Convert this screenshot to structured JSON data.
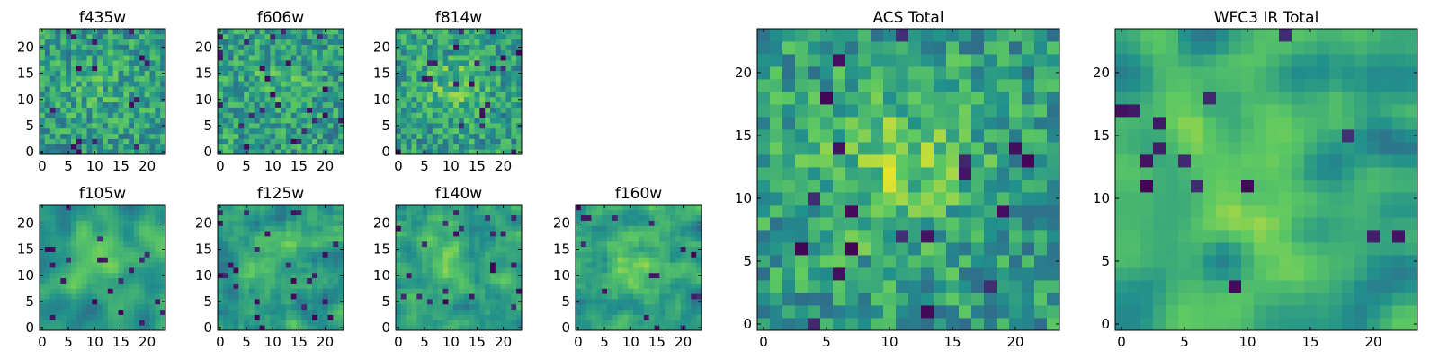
{
  "figure": {
    "colormap": "viridis",
    "colormap_stops": [
      "#440154",
      "#3b528b",
      "#21918c",
      "#5ec962",
      "#fde725"
    ]
  },
  "chart_data": [
    {
      "type": "heatmap",
      "title": "f435w",
      "grid_size": 24,
      "pattern": "noise",
      "smoothness": 0,
      "blob": 0.15,
      "xticks": [
        "0",
        "5",
        "10",
        "15",
        "20"
      ],
      "yticks": [
        "0",
        "5",
        "10",
        "15",
        "20"
      ],
      "xlim": [
        0,
        24
      ],
      "ylim": [
        0,
        24
      ],
      "colorbar": false
    },
    {
      "type": "heatmap",
      "title": "f606w",
      "grid_size": 24,
      "pattern": "noise",
      "smoothness": 0,
      "blob": 0.2,
      "xticks": [
        "0",
        "5",
        "10",
        "15",
        "20"
      ],
      "yticks": [
        "0",
        "5",
        "10",
        "15",
        "20"
      ],
      "xlim": [
        0,
        24
      ],
      "ylim": [
        0,
        24
      ],
      "colorbar": false
    },
    {
      "type": "heatmap",
      "title": "f814w",
      "grid_size": 24,
      "pattern": "noise",
      "smoothness": 0,
      "blob": 0.35,
      "xticks": [
        "0",
        "5",
        "10",
        "15",
        "20"
      ],
      "yticks": [
        "0",
        "5",
        "10",
        "15",
        "20"
      ],
      "xlim": [
        0,
        24
      ],
      "ylim": [
        0,
        24
      ],
      "colorbar": false
    },
    {
      "type": "heatmap",
      "title": "f105w",
      "grid_size": 24,
      "pattern": "smooth",
      "smoothness": 2,
      "blob": 0.5,
      "xticks": [
        "0",
        "5",
        "10",
        "15",
        "20"
      ],
      "yticks": [
        "0",
        "5",
        "10",
        "15",
        "20"
      ],
      "xlim": [
        0,
        24
      ],
      "ylim": [
        0,
        24
      ],
      "colorbar": false
    },
    {
      "type": "heatmap",
      "title": "f125w",
      "grid_size": 24,
      "pattern": "smooth",
      "smoothness": 1,
      "blob": 0.4,
      "xticks": [
        "0",
        "5",
        "10",
        "15",
        "20"
      ],
      "yticks": [
        "0",
        "5",
        "10",
        "15",
        "20"
      ],
      "xlim": [
        0,
        24
      ],
      "ylim": [
        0,
        24
      ],
      "colorbar": false
    },
    {
      "type": "heatmap",
      "title": "f140w",
      "grid_size": 24,
      "pattern": "smooth",
      "smoothness": 1,
      "blob": 0.4,
      "xticks": [
        "0",
        "5",
        "10",
        "15",
        "20"
      ],
      "yticks": [
        "0",
        "5",
        "10",
        "15",
        "20"
      ],
      "xlim": [
        0,
        24
      ],
      "ylim": [
        0,
        24
      ],
      "colorbar": false
    },
    {
      "type": "heatmap",
      "title": "f160w",
      "grid_size": 24,
      "pattern": "smooth",
      "smoothness": 1,
      "blob": 0.45,
      "xticks": [
        "0",
        "5",
        "10",
        "15",
        "20"
      ],
      "yticks": [
        "0",
        "5",
        "10",
        "15",
        "20"
      ],
      "xlim": [
        0,
        24
      ],
      "ylim": [
        0,
        24
      ],
      "colorbar": false
    },
    {
      "type": "heatmap",
      "title": "ACS Total",
      "grid_size": 24,
      "pattern": "noise",
      "smoothness": 0,
      "blob": 0.5,
      "xticks": [
        "0",
        "5",
        "10",
        "15",
        "20"
      ],
      "yticks": [
        "0",
        "5",
        "10",
        "15",
        "20"
      ],
      "xlim": [
        0,
        24
      ],
      "ylim": [
        0,
        24
      ],
      "colorbar": false
    },
    {
      "type": "heatmap",
      "title": "WFC3 IR Total",
      "grid_size": 24,
      "pattern": "smooth",
      "smoothness": 2,
      "blob": 0.7,
      "xticks": [
        "0",
        "5",
        "10",
        "15",
        "20"
      ],
      "yticks": [
        "0",
        "5",
        "10",
        "15",
        "20"
      ],
      "xlim": [
        0,
        24
      ],
      "ylim": [
        0,
        24
      ],
      "colorbar": false
    }
  ]
}
